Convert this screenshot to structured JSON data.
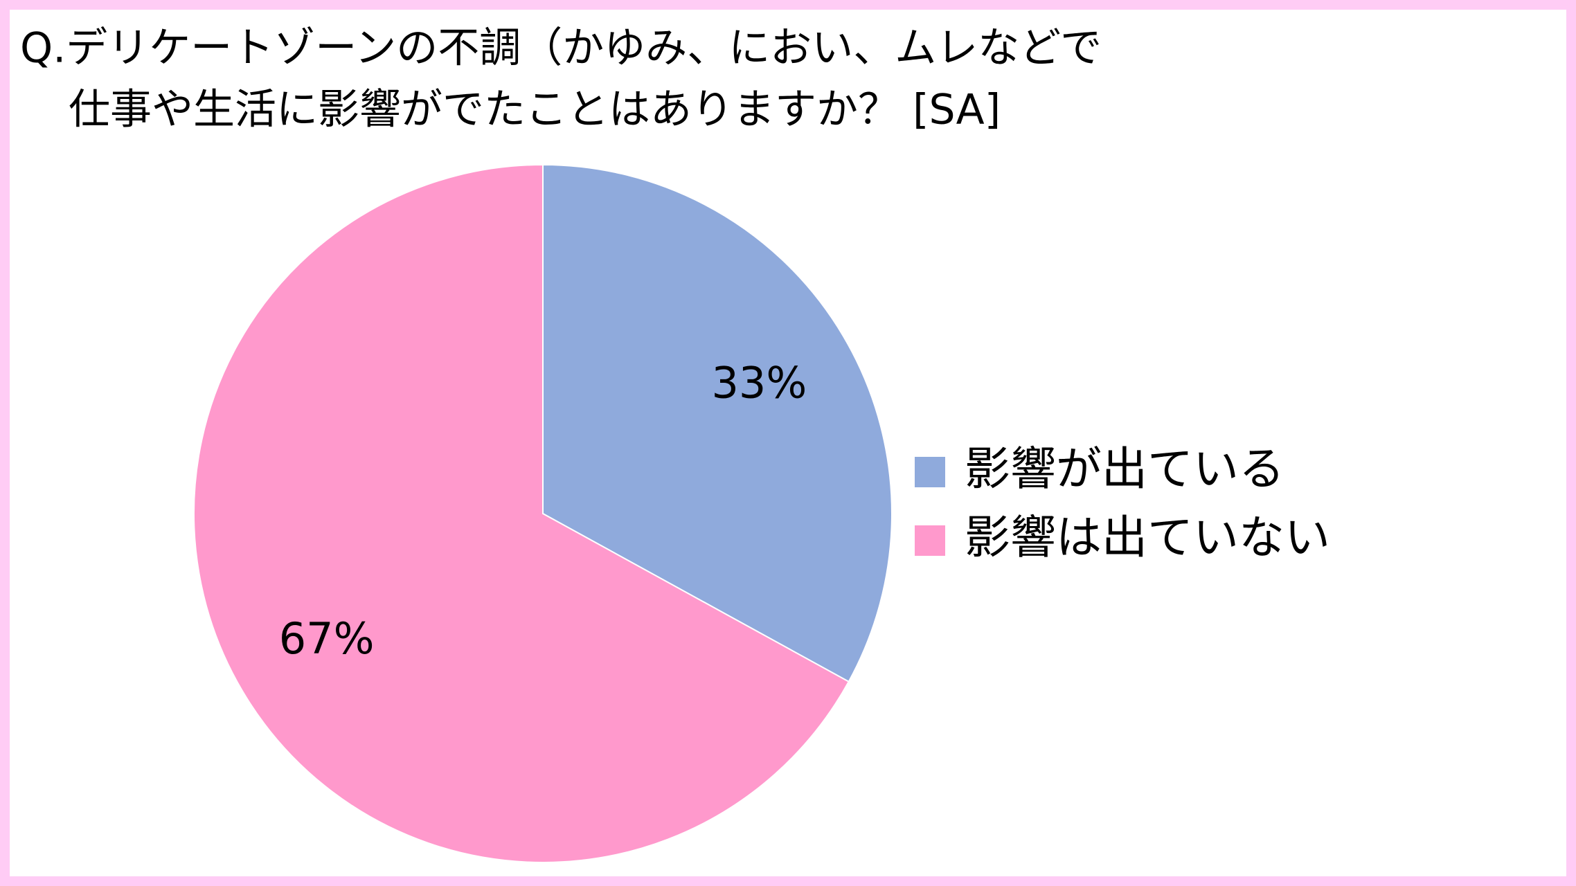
{
  "chart_data": {
    "type": "pie",
    "title": [
      "Q.デリケートゾーンの不調（かゆみ、におい、ムレなどで",
      "仕事や生活に影響がでたことはありますか？ [SA]"
    ],
    "categories": [
      "影響が出ている",
      "影響は出ていない"
    ],
    "values": [
      33,
      67
    ],
    "value_labels": [
      "33%",
      "67%"
    ],
    "colors": [
      "#8faadc",
      "#ff99cc"
    ]
  }
}
